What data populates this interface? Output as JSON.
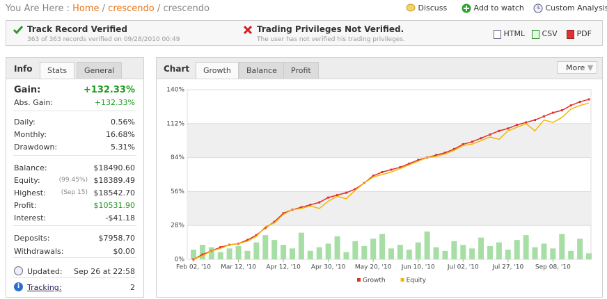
{
  "header": {
    "breadcrumb": {
      "prefix": "You Are Here :",
      "links": [
        "Home",
        "crescendo"
      ],
      "separator": "/",
      "current": "crescendo"
    },
    "actions": [
      "Discuss",
      "Add to watch",
      "Custom Analysis"
    ]
  },
  "verification": {
    "track": {
      "title": "Track Record Verified",
      "detail": "363 of 363 records verified on 09/28/2010 00:49"
    },
    "trading": {
      "title": "Trading Privileges Not Verified.",
      "detail": "The user has not verified his trading privileges."
    },
    "exports": [
      "HTML",
      "CSV",
      "PDF"
    ]
  },
  "info": {
    "label": "Info",
    "tabs": [
      "Stats",
      "General"
    ],
    "gain": {
      "label": "Gain:",
      "value": "+132.33%"
    },
    "groups": [
      [
        {
          "label": "Abs. Gain:",
          "value": "+132.33%",
          "color": "#1f9a1f"
        }
      ],
      [
        {
          "label": "Daily:",
          "value": "0.56%"
        },
        {
          "label": "Monthly:",
          "value": "16.68%"
        },
        {
          "label": "Drawdown:",
          "value": "5.31%"
        }
      ],
      [
        {
          "label": "Balance:",
          "value": "$18490.60"
        },
        {
          "label": "Equity:",
          "note": "(99.45%)",
          "value": "$18389.49"
        },
        {
          "label": "Highest:",
          "note": "(Sep 15)",
          "value": "$18542.70"
        },
        {
          "label": "Profit:",
          "value": "$10531.90",
          "color": "#1f9a1f"
        },
        {
          "label": "Interest:",
          "value": "-$41.18"
        }
      ],
      [
        {
          "label": "Deposits:",
          "value": "$7958.70"
        },
        {
          "label": "Withdrawals:",
          "value": "$0.00"
        }
      ],
      [
        {
          "label": "Updated:",
          "value": "Sep 26 at 22:58"
        }
      ],
      [
        {
          "label": "Tracking:",
          "value": "2",
          "link": true
        }
      ]
    ]
  },
  "chart_panel": {
    "label": "Chart",
    "tabs": [
      "Growth",
      "Balance",
      "Profit"
    ],
    "more": "More"
  },
  "chart_data": {
    "type": "line",
    "categories": [
      "Feb 02, '10",
      null,
      null,
      null,
      null,
      "Mar 12, '10",
      null,
      null,
      null,
      null,
      "Apr 12, '10",
      null,
      null,
      null,
      null,
      "Apr 30, '10",
      null,
      null,
      null,
      null,
      "May 20, '10",
      null,
      null,
      null,
      null,
      "Jun 10, '10",
      null,
      null,
      null,
      null,
      "Jul 02, '10",
      null,
      null,
      null,
      null,
      "Jul 27, '10",
      null,
      null,
      null,
      null,
      "Sep 08, '10",
      null,
      null,
      null,
      null
    ],
    "series": [
      {
        "name": "Growth",
        "color": "#e0302a",
        "markers": true,
        "values": [
          0,
          4,
          7,
          10,
          12,
          13,
          16,
          20,
          26,
          31,
          38,
          41,
          43,
          45,
          47,
          51,
          53,
          55,
          58,
          63,
          69,
          72,
          74,
          76,
          79,
          82,
          84,
          86,
          88,
          91,
          95,
          97,
          100,
          103,
          106,
          108,
          111,
          113,
          115,
          118,
          121,
          123,
          127,
          130,
          132
        ]
      },
      {
        "name": "Equity",
        "color": "#f2b705",
        "values": [
          0,
          3,
          7,
          9,
          12,
          13,
          15,
          19,
          27,
          30,
          37,
          41,
          42,
          44,
          42,
          48,
          52,
          50,
          57,
          63,
          68,
          70,
          72,
          75,
          78,
          81,
          84,
          85,
          87,
          90,
          94,
          95,
          98,
          101,
          99,
          106,
          109,
          112,
          106,
          115,
          113,
          117,
          124,
          127,
          129
        ]
      },
      {
        "type": "bar",
        "color": "#a6dea6",
        "values": [
          8,
          12,
          10,
          6,
          9,
          11,
          7,
          14,
          20,
          16,
          12,
          9,
          22,
          7,
          10,
          13,
          19,
          6,
          15,
          11,
          17,
          21,
          9,
          12,
          8,
          14,
          23,
          10,
          7,
          15,
          12,
          9,
          18,
          11,
          14,
          8,
          16,
          20,
          10,
          13,
          9,
          21,
          7,
          17,
          5
        ]
      }
    ],
    "ylim": [
      0,
      140
    ],
    "yticks": [
      {
        "value": 0,
        "label": "0%"
      },
      {
        "value": 28,
        "label": "28%"
      },
      {
        "value": 56,
        "label": "56%"
      },
      {
        "value": 84,
        "label": "84%"
      },
      {
        "value": 112,
        "label": "112%"
      },
      {
        "value": 140,
        "label": "140%"
      }
    ],
    "grid": true,
    "bands": true,
    "legend": "bottom"
  }
}
